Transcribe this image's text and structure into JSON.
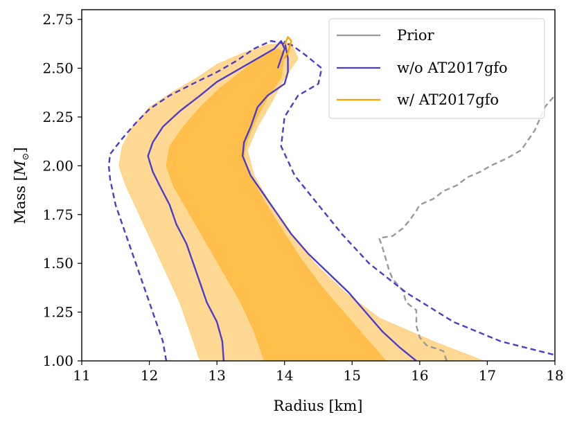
{
  "chart_data": {
    "type": "line",
    "title": "",
    "xlabel": "Radius [km]",
    "ylabel": "Mass [M_⊙]",
    "ylabel_base": "Mass [",
    "ylabel_symbol": "M",
    "ylabel_sub": "⊙",
    "ylabel_end": "]",
    "xlim": [
      11,
      18
    ],
    "ylim": [
      1.0,
      2.8
    ],
    "x_ticks": [
      11,
      12,
      13,
      14,
      15,
      16,
      17,
      18
    ],
    "x_tick_labels": [
      "11",
      "12",
      "13",
      "14",
      "15",
      "16",
      "17",
      "18"
    ],
    "y_ticks": [
      1.0,
      1.25,
      1.5,
      1.75,
      2.0,
      2.25,
      2.5,
      2.75
    ],
    "y_tick_labels": [
      "1.00",
      "1.25",
      "1.50",
      "1.75",
      "2.00",
      "2.25",
      "2.50",
      "2.75"
    ],
    "grid": false,
    "legend_position": "top-right",
    "legend": [
      {
        "label": "Prior",
        "color": "#999999"
      },
      {
        "label": "w/o AT2017gfo",
        "color": "#4b3cc9"
      },
      {
        "label": "w/ AT2017gfo",
        "color": "#ffa500"
      }
    ],
    "series": [
      {
        "name": "Prior",
        "style": "dashed",
        "color": "#999999",
        "points": [
          [
            16.4,
            1.0
          ],
          [
            16.35,
            1.05
          ],
          [
            16.1,
            1.08
          ],
          [
            16.0,
            1.12
          ],
          [
            15.95,
            1.18
          ],
          [
            15.95,
            1.26
          ],
          [
            15.8,
            1.3
          ],
          [
            15.75,
            1.36
          ],
          [
            15.6,
            1.42
          ],
          [
            15.55,
            1.46
          ],
          [
            15.5,
            1.52
          ],
          [
            15.45,
            1.58
          ],
          [
            15.4,
            1.63
          ],
          [
            15.6,
            1.64
          ],
          [
            15.75,
            1.68
          ],
          [
            15.85,
            1.72
          ],
          [
            15.95,
            1.77
          ],
          [
            16.0,
            1.8
          ],
          [
            16.2,
            1.83
          ],
          [
            16.35,
            1.87
          ],
          [
            16.55,
            1.9
          ],
          [
            16.7,
            1.94
          ],
          [
            16.9,
            1.97
          ],
          [
            17.05,
            2.0
          ],
          [
            17.3,
            2.04
          ],
          [
            17.5,
            2.08
          ],
          [
            17.6,
            2.13
          ],
          [
            17.7,
            2.18
          ],
          [
            17.75,
            2.22
          ],
          [
            17.8,
            2.26
          ],
          [
            17.85,
            2.3
          ],
          [
            17.92,
            2.33
          ],
          [
            18.0,
            2.36
          ]
        ]
      },
      {
        "name": "w/o AT2017gfo (median)",
        "style": "solid",
        "color": "#4b3cc9",
        "points": [
          [
            13.1,
            1.0
          ],
          [
            13.08,
            1.1
          ],
          [
            13.0,
            1.2
          ],
          [
            12.85,
            1.3
          ],
          [
            12.75,
            1.4
          ],
          [
            12.65,
            1.5
          ],
          [
            12.55,
            1.6
          ],
          [
            12.4,
            1.7
          ],
          [
            12.3,
            1.8
          ],
          [
            12.15,
            1.9
          ],
          [
            12.05,
            1.97
          ],
          [
            11.98,
            2.05
          ],
          [
            12.05,
            2.12
          ],
          [
            12.2,
            2.2
          ],
          [
            12.45,
            2.28
          ],
          [
            12.75,
            2.36
          ],
          [
            13.0,
            2.43
          ],
          [
            13.3,
            2.49
          ],
          [
            13.6,
            2.55
          ],
          [
            13.85,
            2.6
          ],
          [
            13.95,
            2.64
          ],
          [
            14.0,
            2.6
          ],
          [
            13.95,
            2.55
          ],
          [
            13.9,
            2.5
          ]
        ]
      },
      {
        "name": "w/o AT2017gfo (median, right)",
        "style": "solid",
        "color": "#4b3cc9",
        "points": [
          [
            14.0,
            2.64
          ],
          [
            14.05,
            2.55
          ],
          [
            14.05,
            2.48
          ],
          [
            14.0,
            2.42
          ],
          [
            13.75,
            2.36
          ],
          [
            13.6,
            2.3
          ],
          [
            13.5,
            2.2
          ],
          [
            13.4,
            2.12
          ],
          [
            13.38,
            2.05
          ],
          [
            13.5,
            1.95
          ],
          [
            13.7,
            1.85
          ],
          [
            13.9,
            1.75
          ],
          [
            14.1,
            1.65
          ],
          [
            14.35,
            1.55
          ],
          [
            14.65,
            1.45
          ],
          [
            14.95,
            1.35
          ],
          [
            15.2,
            1.25
          ],
          [
            15.45,
            1.15
          ],
          [
            15.7,
            1.07
          ],
          [
            15.95,
            1.0
          ]
        ]
      },
      {
        "name": "w/o AT2017gfo (90% bound)",
        "style": "dashed",
        "color": "#4b3cc9",
        "points": [
          [
            12.25,
            1.0
          ],
          [
            12.2,
            1.1
          ],
          [
            12.1,
            1.2
          ],
          [
            11.95,
            1.35
          ],
          [
            11.8,
            1.5
          ],
          [
            11.65,
            1.65
          ],
          [
            11.5,
            1.8
          ],
          [
            11.42,
            1.93
          ],
          [
            11.4,
            2.0
          ],
          [
            11.42,
            2.06
          ],
          [
            11.6,
            2.14
          ],
          [
            11.8,
            2.22
          ],
          [
            12.0,
            2.29
          ],
          [
            12.3,
            2.36
          ],
          [
            12.7,
            2.43
          ],
          [
            13.0,
            2.48
          ],
          [
            13.3,
            2.54
          ],
          [
            13.55,
            2.6
          ],
          [
            13.8,
            2.64
          ],
          [
            14.1,
            2.62
          ],
          [
            14.3,
            2.57
          ],
          [
            14.55,
            2.5
          ],
          [
            14.5,
            2.42
          ],
          [
            14.2,
            2.36
          ],
          [
            14.0,
            2.25
          ],
          [
            13.95,
            2.1
          ],
          [
            14.15,
            1.95
          ],
          [
            14.5,
            1.8
          ],
          [
            14.85,
            1.65
          ],
          [
            15.25,
            1.5
          ],
          [
            15.8,
            1.35
          ],
          [
            16.5,
            1.2
          ],
          [
            17.2,
            1.1
          ],
          [
            18.0,
            1.03
          ]
        ]
      },
      {
        "name": "w/ AT2017gfo (peak)",
        "style": "solid",
        "color": "#ffa500",
        "points": [
          [
            14.0,
            2.62
          ],
          [
            14.05,
            2.66
          ],
          [
            14.1,
            2.64
          ],
          [
            14.05,
            2.58
          ],
          [
            14.0,
            2.55
          ]
        ]
      }
    ],
    "bands": [
      {
        "name": "w/ AT2017gfo 90%",
        "color": "#ffa500",
        "opacity": 0.42,
        "points": [
          [
            12.75,
            1.0
          ],
          [
            12.6,
            1.15
          ],
          [
            12.45,
            1.3
          ],
          [
            12.25,
            1.45
          ],
          [
            12.05,
            1.6
          ],
          [
            11.85,
            1.75
          ],
          [
            11.65,
            1.9
          ],
          [
            11.55,
            2.0
          ],
          [
            11.6,
            2.1
          ],
          [
            11.75,
            2.2
          ],
          [
            12.0,
            2.3
          ],
          [
            12.35,
            2.38
          ],
          [
            12.7,
            2.45
          ],
          [
            13.0,
            2.52
          ],
          [
            13.4,
            2.58
          ],
          [
            13.75,
            2.62
          ],
          [
            14.1,
            2.63
          ],
          [
            14.2,
            2.55
          ],
          [
            14.0,
            2.45
          ],
          [
            13.8,
            2.32
          ],
          [
            13.6,
            2.2
          ],
          [
            13.45,
            2.08
          ],
          [
            13.55,
            1.95
          ],
          [
            13.8,
            1.8
          ],
          [
            14.1,
            1.65
          ],
          [
            14.45,
            1.5
          ],
          [
            14.9,
            1.35
          ],
          [
            15.4,
            1.22
          ],
          [
            16.2,
            1.1
          ],
          [
            16.95,
            1.0
          ]
        ]
      },
      {
        "name": "w/ AT2017gfo 50%",
        "color": "#ffa500",
        "opacity": 0.5,
        "points": [
          [
            13.7,
            1.0
          ],
          [
            13.55,
            1.15
          ],
          [
            13.35,
            1.3
          ],
          [
            13.1,
            1.45
          ],
          [
            12.85,
            1.6
          ],
          [
            12.6,
            1.75
          ],
          [
            12.35,
            1.9
          ],
          [
            12.25,
            2.0
          ],
          [
            12.3,
            2.1
          ],
          [
            12.5,
            2.2
          ],
          [
            12.75,
            2.3
          ],
          [
            13.05,
            2.4
          ],
          [
            13.35,
            2.48
          ],
          [
            13.6,
            2.55
          ],
          [
            13.9,
            2.6
          ],
          [
            14.0,
            2.58
          ],
          [
            13.95,
            2.45
          ],
          [
            13.75,
            2.35
          ],
          [
            13.6,
            2.25
          ],
          [
            13.45,
            2.13
          ],
          [
            13.4,
            2.05
          ],
          [
            13.5,
            1.95
          ],
          [
            13.7,
            1.82
          ],
          [
            13.95,
            1.68
          ],
          [
            14.25,
            1.52
          ],
          [
            14.55,
            1.38
          ],
          [
            14.9,
            1.24
          ],
          [
            15.2,
            1.12
          ],
          [
            15.5,
            1.0
          ]
        ]
      }
    ]
  }
}
